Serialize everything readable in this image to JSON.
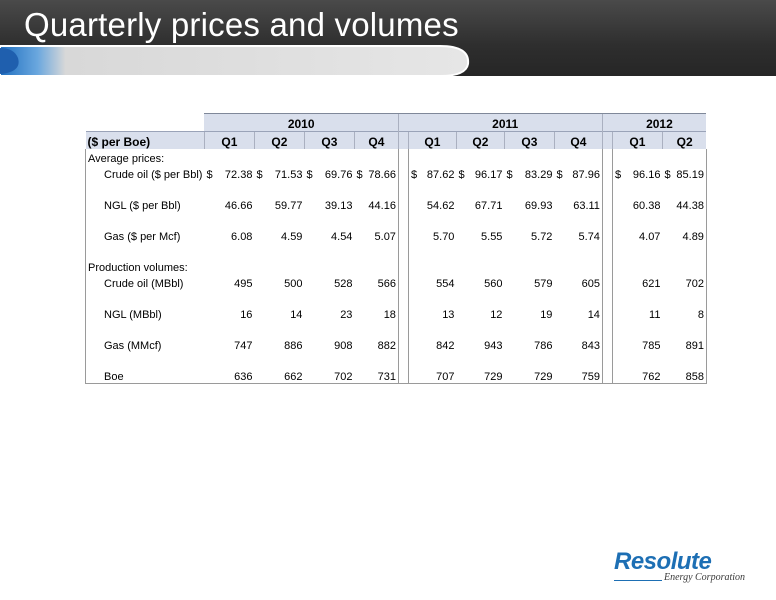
{
  "slide": {
    "title": "Quarterly prices and volumes"
  },
  "table": {
    "years": [
      "2010",
      "2011",
      "2012"
    ],
    "unit_label": "($ per Boe)",
    "quarters": {
      "2010": [
        "Q1",
        "Q2",
        "Q3",
        "Q4"
      ],
      "2011": [
        "Q1",
        "Q2",
        "Q3",
        "Q4"
      ],
      "2012": [
        "Q1",
        "Q2"
      ]
    },
    "sections": [
      {
        "label": "Average prices:",
        "rows": [
          {
            "label": "Crude oil ($ per Bbl)",
            "currency": "$",
            "y2010": [
              "72.38",
              "71.53",
              "69.76",
              "78.66"
            ],
            "y2011": [
              "87.62",
              "96.17",
              "83.29",
              "87.96"
            ],
            "y2012": [
              "96.16",
              "85.19"
            ]
          },
          {
            "label": "NGL ($ per Bbl)",
            "currency": "",
            "y2010": [
              "46.66",
              "59.77",
              "39.13",
              "44.16"
            ],
            "y2011": [
              "54.62",
              "67.71",
              "69.93",
              "63.11"
            ],
            "y2012": [
              "60.38",
              "44.38"
            ]
          },
          {
            "label": "Gas ($ per Mcf)",
            "currency": "",
            "y2010": [
              "6.08",
              "4.59",
              "4.54",
              "5.07"
            ],
            "y2011": [
              "5.70",
              "5.55",
              "5.72",
              "5.74"
            ],
            "y2012": [
              "4.07",
              "4.89"
            ]
          }
        ]
      },
      {
        "label": "Production volumes:",
        "rows": [
          {
            "label": "Crude oil (MBbl)",
            "currency": "",
            "y2010": [
              "495",
              "500",
              "528",
              "566"
            ],
            "y2011": [
              "554",
              "560",
              "579",
              "605"
            ],
            "y2012": [
              "621",
              "702"
            ]
          },
          {
            "label": "NGL (MBbl)",
            "currency": "",
            "y2010": [
              "16",
              "14",
              "23",
              "18"
            ],
            "y2011": [
              "13",
              "12",
              "19",
              "14"
            ],
            "y2012": [
              "11",
              "8"
            ]
          },
          {
            "label": "Gas (MMcf)",
            "currency": "",
            "y2010": [
              "747",
              "886",
              "908",
              "882"
            ],
            "y2011": [
              "842",
              "943",
              "786",
              "843"
            ],
            "y2012": [
              "785",
              "891"
            ]
          },
          {
            "label": "Boe",
            "currency": "",
            "y2010": [
              "636",
              "662",
              "702",
              "731"
            ],
            "y2011": [
              "707",
              "729",
              "729",
              "759"
            ],
            "y2012": [
              "762",
              "858"
            ]
          }
        ]
      }
    ]
  },
  "logo": {
    "name": "Resolute",
    "tagline": "Energy Corporation"
  },
  "colors": {
    "header_bg": "#2e2e2e",
    "table_header_bg": "#d9dfec",
    "brand_blue": "#1d6fb4"
  }
}
